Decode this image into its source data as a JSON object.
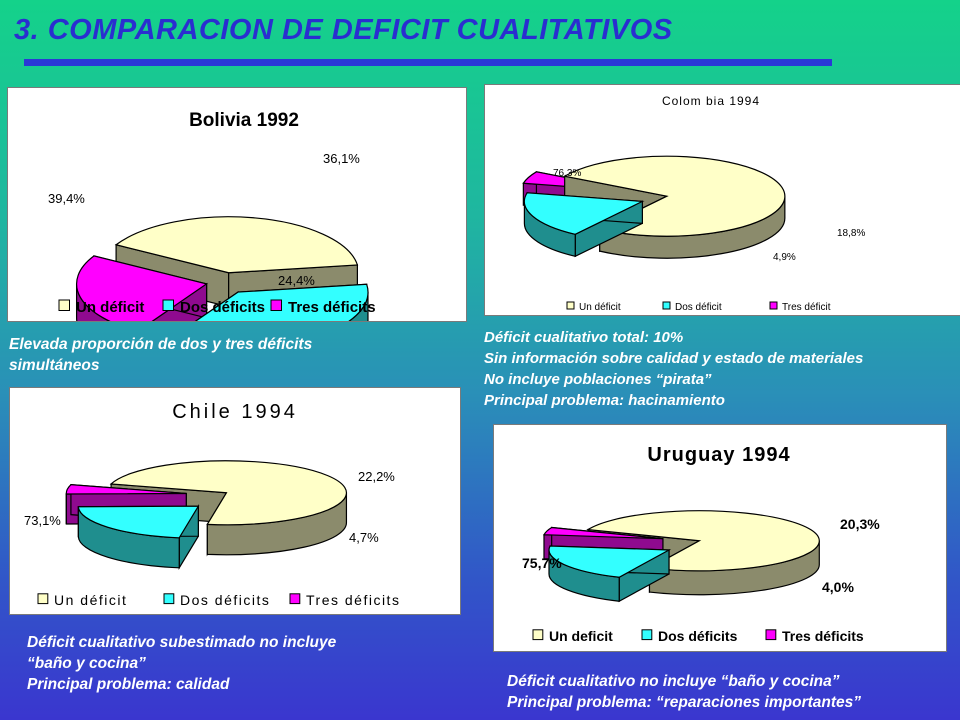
{
  "title": "3. COMPARACION DE DEFICIT CUALITATIVOS",
  "colors": {
    "un": "#ffffc8",
    "dos": "#33ffff",
    "tres": "#ff00ff",
    "un_side": "#8b8b6c",
    "dos_side": "#1f8e8e",
    "tres_side": "#8f0a8f",
    "title_blue": "#2a2ed0"
  },
  "chart_data": [
    {
      "type": "pie",
      "title": "Bolivia 1992",
      "categories": [
        "Un déficit",
        "Dos déficits",
        "Tres déficits"
      ],
      "values": [
        39.4,
        36.1,
        24.4
      ],
      "labels": [
        "39,4%",
        "36,1%",
        "24,4%"
      ],
      "legend": [
        "Un déficit",
        "Dos déficits",
        "Tres déficits"
      ],
      "legend_position": "bottom",
      "style": "3d-exploded"
    },
    {
      "type": "pie",
      "title": "Colom bia 1994",
      "categories": [
        "Un déficit",
        "Dos déficit",
        "Tres déficit"
      ],
      "values": [
        76.3,
        18.8,
        4.9
      ],
      "labels": [
        "76,3%",
        "18,8%",
        "4,9%"
      ],
      "legend": [
        "Un déficit",
        "Dos déficit",
        "Tres déficit"
      ],
      "legend_position": "bottom",
      "style": "3d-exploded"
    },
    {
      "type": "pie",
      "title": "Chile 1994",
      "categories": [
        "Un déficit",
        "Dos déficits",
        "Tres déficits"
      ],
      "values": [
        73.1,
        22.2,
        4.7
      ],
      "labels": [
        "73,1%",
        "22,2%",
        "4,7%"
      ],
      "legend": [
        "Un déficit",
        "Dos déficits",
        "Tres déficits"
      ],
      "legend_position": "bottom",
      "style": "3d-exploded"
    },
    {
      "type": "pie",
      "title": "Uruguay 1994",
      "categories": [
        "Un deficit",
        "Dos déficits",
        "Tres déficits"
      ],
      "values": [
        75.7,
        20.3,
        4.0
      ],
      "labels": [
        "75,7%",
        "20,3%",
        "4,0%"
      ],
      "legend": [
        "Un deficit",
        "Dos déficits",
        "Tres déficits"
      ],
      "legend_position": "bottom",
      "style": "3d-exploded"
    }
  ],
  "notes": {
    "bolivia": [
      "Elevada proporción de dos y tres déficits",
      "simultáneos"
    ],
    "colombia": [
      "Déficit cualitativo total: 10%",
      "Sin información sobre calidad y estado de materiales",
      "No incluye poblaciones “pirata”",
      "Principal problema: hacinamiento"
    ],
    "chile": [
      "Déficit cualitativo subestimado no incluye",
      "“baño y cocina”",
      "Principal problema: calidad"
    ],
    "uruguay": [
      "Déficit cualitativo no incluye “baño y cocina”",
      "Principal problema: “reparaciones importantes”"
    ]
  }
}
